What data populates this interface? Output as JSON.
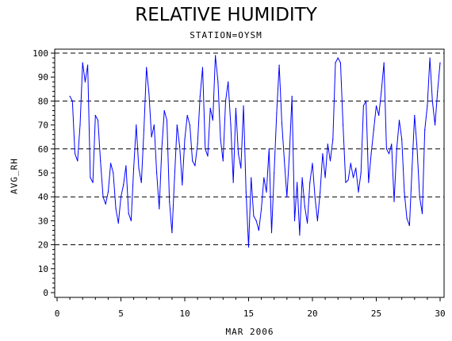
{
  "chart_data": {
    "type": "line",
    "title": "RELATIVE HUMIDITY",
    "subtitle": "STATION=OYSM",
    "xlabel": "MAR 2006",
    "ylabel": "AVG_RH",
    "xlim": [
      0,
      30
    ],
    "ylim": [
      0,
      100
    ],
    "x_ticks": [
      0,
      5,
      10,
      15,
      20,
      25,
      30
    ],
    "y_ticks": [
      0,
      10,
      20,
      30,
      40,
      50,
      60,
      70,
      80,
      90,
      100
    ],
    "reference_lines": [
      20,
      40,
      60,
      80,
      100
    ],
    "line_color": "#0000ff",
    "series": [
      {
        "x": [
          1.0,
          1.2,
          1.4,
          1.6,
          1.8,
          2.0,
          2.2,
          2.4,
          2.6,
          2.8,
          3.0,
          3.2,
          3.4,
          3.6,
          3.8,
          4.0,
          4.2,
          4.4,
          4.6,
          4.8,
          5.0,
          5.2,
          5.4,
          5.6,
          5.8,
          6.0,
          6.2,
          6.4,
          6.6,
          6.8,
          7.0,
          7.2,
          7.4,
          7.6,
          7.8,
          8.0,
          8.2,
          8.4,
          8.6,
          8.8,
          9.0,
          9.2,
          9.4,
          9.6,
          9.8,
          10.0,
          10.2,
          10.4,
          10.6,
          10.8,
          11.0,
          11.2,
          11.4,
          11.6,
          11.8,
          12.0,
          12.2,
          12.4,
          12.6,
          12.8,
          13.0,
          13.2,
          13.4,
          13.6,
          13.8,
          14.0,
          14.2,
          14.4,
          14.6,
          14.8,
          15.0,
          15.2,
          15.4,
          15.6,
          15.8,
          16.0,
          16.2,
          16.4,
          16.6,
          16.8,
          17.0,
          17.2,
          17.4,
          17.6,
          17.8,
          18.0,
          18.2,
          18.4,
          18.6,
          18.8,
          19.0,
          19.2,
          19.4,
          19.6,
          19.8,
          20.0,
          20.2,
          20.4,
          20.6,
          20.8,
          21.0,
          21.2,
          21.4,
          21.6,
          21.8,
          22.0,
          22.2,
          22.4,
          22.6,
          22.8,
          23.0,
          23.2,
          23.4,
          23.6,
          23.8,
          24.0,
          24.2,
          24.4,
          24.6,
          24.8,
          25.0,
          25.2,
          25.4,
          25.6,
          25.8,
          26.0,
          26.2,
          26.4,
          26.6,
          26.8,
          27.0,
          27.2,
          27.4,
          27.6,
          27.8,
          28.0,
          28.2,
          28.4,
          28.6,
          28.8,
          29.0,
          29.2,
          29.4,
          29.6,
          29.8,
          30.0
        ],
        "values": [
          82,
          80,
          58,
          55,
          70,
          96,
          88,
          95,
          48,
          46,
          74,
          72,
          55,
          40,
          37,
          42,
          54,
          50,
          35,
          29,
          40,
          45,
          53,
          33,
          30,
          52,
          70,
          52,
          46,
          68,
          94,
          83,
          65,
          70,
          50,
          35,
          60,
          76,
          72,
          38,
          25,
          48,
          70,
          61,
          45,
          64,
          74,
          70,
          55,
          53,
          62,
          82,
          94,
          60,
          57,
          77,
          72,
          99,
          88,
          64,
          55,
          80,
          88,
          70,
          46,
          77,
          58,
          52,
          78,
          42,
          19,
          48,
          32,
          30,
          26,
          35,
          48,
          42,
          60,
          25,
          50,
          75,
          95,
          71,
          55,
          40,
          58,
          82,
          30,
          46,
          24,
          48,
          36,
          29,
          46,
          54,
          40,
          30,
          42,
          58,
          48,
          62,
          55,
          64,
          96,
          98,
          96,
          70,
          46,
          47,
          54,
          48,
          52,
          42,
          50,
          78,
          80,
          46,
          58,
          68,
          78,
          74,
          84,
          96,
          60,
          58,
          62,
          38,
          60,
          72,
          64,
          42,
          31,
          28,
          52,
          74,
          60,
          40,
          33,
          68,
          78,
          98,
          80,
          70,
          84,
          96
        ]
      }
    ]
  }
}
